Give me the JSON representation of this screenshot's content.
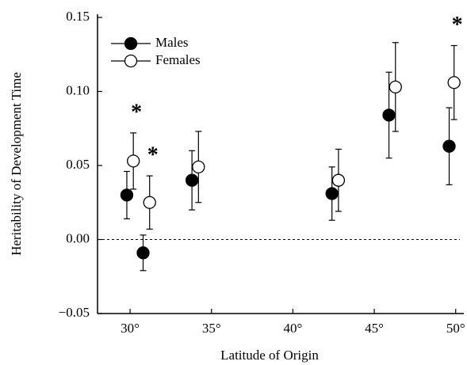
{
  "chart_data": {
    "type": "scatter",
    "xlabel": "Latitude of Origin",
    "ylabel": "Heritability of Development Time",
    "xlim": [
      28,
      50.5
    ],
    "ylim": [
      -0.05,
      0.15
    ],
    "xticks": [
      {
        "value": 30,
        "label": "30°"
      },
      {
        "value": 35,
        "label": "35°"
      },
      {
        "value": 40,
        "label": "40°"
      },
      {
        "value": 45,
        "label": "45°"
      },
      {
        "value": 50,
        "label": "50°"
      }
    ],
    "yticks": [
      {
        "value": -0.05,
        "label": "−0.05"
      },
      {
        "value": 0,
        "label": "0.00"
      },
      {
        "value": 0.05,
        "label": "0.05"
      },
      {
        "value": 0.1,
        "label": "0.10"
      },
      {
        "value": 0.15,
        "label": "0.15"
      }
    ],
    "legend": "upper left",
    "series": [
      {
        "name": "Males",
        "color": "#000000",
        "marker": "filled",
        "x": [
          29.8,
          30.8,
          33.8,
          42.4,
          45.9,
          49.6
        ],
        "values": [
          0.03,
          -0.009,
          0.04,
          0.031,
          0.084,
          0.063
        ],
        "errors": [
          0.016,
          0.012,
          0.02,
          0.018,
          0.029,
          0.026
        ]
      },
      {
        "name": "Females",
        "color": "#000000",
        "marker": "open",
        "x": [
          30.2,
          31.2,
          34.2,
          42.8,
          46.3,
          49.9
        ],
        "values": [
          0.053,
          0.025,
          0.049,
          0.04,
          0.103,
          0.106
        ],
        "errors": [
          0.019,
          0.018,
          0.024,
          0.021,
          0.03,
          0.025
        ]
      }
    ],
    "annotations": [
      "*",
      "*",
      "*"
    ]
  }
}
